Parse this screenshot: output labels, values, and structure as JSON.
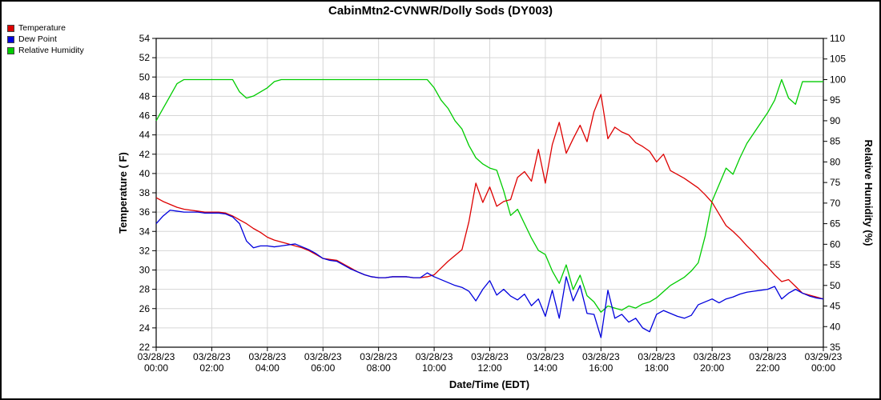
{
  "title": "CabinMtn2-CVNWR/Dolly Sods (DY003)",
  "legend": {
    "position": "top-left",
    "items": [
      {
        "label": "Temperature",
        "color": "#dd0000"
      },
      {
        "label": "Dew Point",
        "color": "#0000dd"
      },
      {
        "label": "Relative Humidity",
        "color": "#00cc00"
      }
    ]
  },
  "chart_data": {
    "type": "line",
    "title": "CabinMtn2-CVNWR/Dolly Sods (DY003)",
    "xlabel": "Date/Time (EDT)",
    "grid": true,
    "legend_position": "top-left",
    "x_start_hour": 0,
    "x_end_hour": 24,
    "x_step_hours": 0.25,
    "x_tick_step_hours": 2,
    "left_axis": {
      "label": "Temperature ( F)",
      "range": [
        22,
        54
      ],
      "step": 2
    },
    "right_axis": {
      "label": "Relative Humidity (%)",
      "range": [
        35,
        110
      ],
      "step": 5
    },
    "x_ticks": [
      {
        "date": "03/28/23",
        "time": "00:00"
      },
      {
        "date": "03/28/23",
        "time": "02:00"
      },
      {
        "date": "03/28/23",
        "time": "04:00"
      },
      {
        "date": "03/28/23",
        "time": "06:00"
      },
      {
        "date": "03/28/23",
        "time": "08:00"
      },
      {
        "date": "03/28/23",
        "time": "10:00"
      },
      {
        "date": "03/28/23",
        "time": "12:00"
      },
      {
        "date": "03/28/23",
        "time": "14:00"
      },
      {
        "date": "03/28/23",
        "time": "16:00"
      },
      {
        "date": "03/28/23",
        "time": "18:00"
      },
      {
        "date": "03/28/23",
        "time": "20:00"
      },
      {
        "date": "03/28/23",
        "time": "22:00"
      },
      {
        "date": "03/29/23",
        "time": "00:00"
      }
    ],
    "series": {
      "temperature": {
        "name": "Temperature",
        "axis": "left",
        "units": "F",
        "values": [
          37.5,
          37.1,
          36.8,
          36.5,
          36.3,
          36.2,
          36.1,
          36.0,
          36.0,
          36.0,
          35.9,
          35.6,
          35.2,
          34.8,
          34.3,
          33.9,
          33.4,
          33.1,
          32.9,
          32.7,
          32.5,
          32.3,
          32.0,
          31.6,
          31.2,
          31.1,
          31.0,
          30.6,
          30.2,
          29.8,
          29.5,
          29.3,
          29.2,
          29.2,
          29.3,
          29.3,
          29.3,
          29.2,
          29.2,
          29.3,
          29.5,
          30.2,
          30.9,
          31.5,
          32.1,
          35.0,
          39.0,
          37.0,
          38.6,
          36.6,
          37.1,
          37.3,
          39.6,
          40.2,
          39.2,
          42.5,
          39.0,
          43.0,
          45.3,
          42.1,
          43.6,
          45.0,
          43.3,
          46.4,
          48.2,
          43.6,
          44.8,
          44.3,
          44.0,
          43.2,
          42.8,
          42.3,
          41.2,
          42.0,
          40.3,
          39.9,
          39.5,
          39.0,
          38.5,
          37.8,
          37.0,
          35.8,
          34.6,
          34.0,
          33.3,
          32.5,
          31.8,
          31.0,
          30.3,
          29.5,
          28.8,
          29.0,
          28.3,
          27.6,
          27.4,
          27.2,
          27.0
        ]
      },
      "dew_point": {
        "name": "Dew Point",
        "axis": "left",
        "units": "F",
        "values": [
          34.8,
          35.6,
          36.2,
          36.1,
          36.0,
          36.0,
          36.0,
          35.9,
          35.9,
          35.9,
          35.8,
          35.5,
          34.8,
          33.0,
          32.3,
          32.5,
          32.5,
          32.4,
          32.5,
          32.6,
          32.7,
          32.4,
          32.1,
          31.7,
          31.2,
          31.0,
          30.9,
          30.5,
          30.1,
          29.8,
          29.5,
          29.3,
          29.2,
          29.2,
          29.3,
          29.3,
          29.3,
          29.2,
          29.2,
          29.7,
          29.3,
          29.0,
          28.7,
          28.4,
          28.2,
          27.8,
          26.8,
          28.0,
          28.9,
          27.4,
          28.0,
          27.3,
          26.9,
          27.5,
          26.3,
          27.0,
          25.2,
          27.9,
          25.0,
          29.3,
          26.8,
          28.4,
          25.5,
          25.4,
          23.0,
          27.9,
          25.0,
          25.4,
          24.6,
          25.0,
          24.0,
          23.6,
          25.4,
          25.8,
          25.5,
          25.2,
          25.0,
          25.3,
          26.4,
          26.7,
          27.0,
          26.6,
          27.0,
          27.2,
          27.5,
          27.7,
          27.8,
          27.9,
          28.0,
          28.3,
          27.0,
          27.6,
          28.0,
          27.6,
          27.3,
          27.1,
          27.0
        ]
      },
      "relative_humidity": {
        "name": "Relative Humidity",
        "axis": "right",
        "units": "%",
        "values": [
          90,
          93,
          96,
          99,
          100,
          100,
          100,
          100,
          100,
          100,
          100,
          100,
          97,
          95.5,
          96,
          97,
          98,
          99.5,
          100,
          100,
          100,
          100,
          100,
          100,
          100,
          100,
          100,
          100,
          100,
          100,
          100,
          100,
          100,
          100,
          100,
          100,
          100,
          100,
          100,
          100,
          98,
          95,
          93,
          90,
          88,
          84,
          81,
          79.5,
          78.5,
          78,
          73,
          67,
          68.5,
          65,
          61.5,
          58.5,
          57.5,
          53.5,
          50.5,
          55,
          49,
          52.5,
          47.5,
          46,
          43.5,
          45,
          44.5,
          44,
          45,
          44.5,
          45.5,
          46,
          47,
          48.5,
          50,
          51,
          52,
          53.5,
          55.5,
          62,
          70.5,
          74.5,
          78.5,
          77,
          81,
          84.5,
          87,
          89.5,
          92,
          95,
          100,
          95.5,
          94,
          99.5,
          99.5,
          99.5,
          99.5
        ]
      }
    }
  }
}
